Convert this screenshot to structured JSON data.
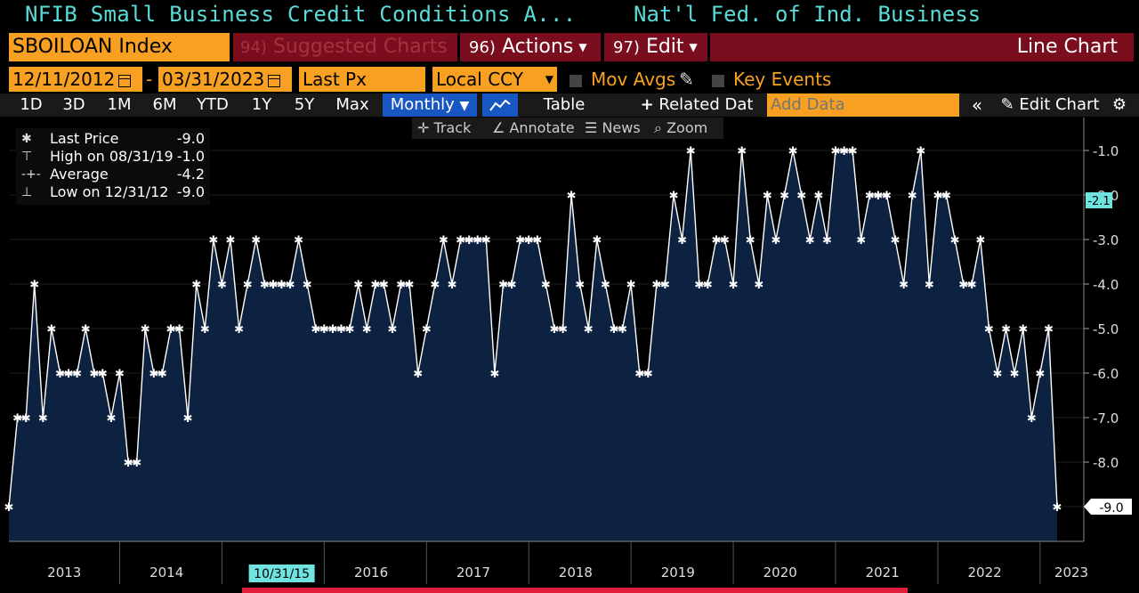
{
  "title": {
    "left": "NFIB Small Business Credit Conditions A...",
    "right": "Nat'l Fed. of Ind. Business"
  },
  "toolbar": {
    "ticker": "SBOILOAN Index",
    "suggested_num": "94)",
    "suggested": "Suggested Charts",
    "actions_num": "96)",
    "actions": "Actions",
    "edit_num": "97)",
    "edit": "Edit",
    "chart_type": "Line Chart"
  },
  "range": {
    "start": "12/11/2012",
    "sep": "-",
    "end": "03/31/2023",
    "field": "Last Px",
    "currency": "Local CCY",
    "mov_avgs": "Mov Avgs",
    "key_events": "Key Events"
  },
  "periods": [
    "1D",
    "3D",
    "1M",
    "6M",
    "YTD",
    "1Y",
    "5Y",
    "Max"
  ],
  "frequency": "Monthly",
  "buttons": {
    "table": "Table",
    "related": "Related Dat",
    "add_data_placeholder": "Add Data",
    "edit_chart": "Edit Chart"
  },
  "subtools": {
    "track": "Track",
    "annotate": "Annotate",
    "news": "News",
    "zoom": "Zoom"
  },
  "legend": [
    {
      "label": "Last Price",
      "value": "-9.0"
    },
    {
      "label": "High on 08/31/19",
      "value": "-1.0"
    },
    {
      "label": "Average",
      "value": "-4.2"
    },
    {
      "label": "Low on 12/31/12",
      "value": "-9.0"
    }
  ],
  "colors": {
    "accent": "#f7a021",
    "title": "#59dcd7",
    "bar": "#7a0e1e",
    "fill": "#0d2240",
    "line": "#ffffff"
  },
  "chart_data": {
    "type": "area",
    "ylim": [
      -9.8,
      0.0
    ],
    "yticks": [
      "-1.0",
      "-2.0",
      "-3.0",
      "-4.0",
      "-5.0",
      "-6.0",
      "-7.0",
      "-8.0",
      "-9.0"
    ],
    "ytick_values": [
      -1,
      -2,
      -3,
      -4,
      -5,
      -6,
      -7,
      -8,
      -9
    ],
    "xlabels": [
      "2013",
      "2014",
      "2015",
      "2016",
      "2017",
      "2018",
      "2019",
      "2020",
      "2021",
      "2022",
      "2023"
    ],
    "hover_date": "10/31/15",
    "last_label": "-9.0",
    "crosshair_label": "-2.1",
    "crosshair_value": -2.1,
    "start": "2012-12",
    "values": [
      -9,
      -7,
      -7,
      -4,
      -7,
      -5,
      -6,
      -6,
      -6,
      -5,
      -6,
      -6,
      -7,
      -6,
      -8,
      -8,
      -5,
      -6,
      -6,
      -5,
      -5,
      -7,
      -4,
      -5,
      -3,
      -4,
      -3,
      -5,
      -4,
      -3,
      -4,
      -4,
      -4,
      -4,
      -3,
      -4,
      -5,
      -5,
      -5,
      -5,
      -5,
      -4,
      -5,
      -4,
      -4,
      -5,
      -4,
      -4,
      -6,
      -5,
      -4,
      -3,
      -4,
      -3,
      -3,
      -3,
      -3,
      -6,
      -4,
      -4,
      -3,
      -3,
      -3,
      -4,
      -5,
      -5,
      -2,
      -4,
      -5,
      -3,
      -4,
      -5,
      -5,
      -4,
      -6,
      -6,
      -4,
      -4,
      -2,
      -3,
      -1,
      -4,
      -4,
      -3,
      -3,
      -4,
      -1,
      -3,
      -4,
      -2,
      -3,
      -2,
      -1,
      -2,
      -3,
      -2,
      -3,
      -1,
      -1,
      -1,
      -3,
      -2,
      -2,
      -2,
      -3,
      -4,
      -2,
      -1,
      -4,
      -2,
      -2,
      -3,
      -4,
      -4,
      -3,
      -5,
      -6,
      -5,
      -6,
      -5,
      -7,
      -6,
      -5,
      -9
    ]
  }
}
